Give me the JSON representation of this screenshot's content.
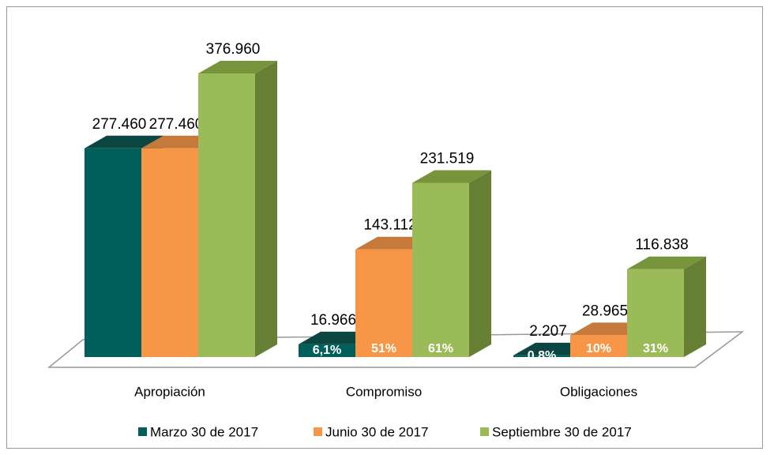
{
  "chart_data": {
    "type": "bar3d",
    "categories": [
      "Apropiación",
      "Compromiso",
      "Obligaciones"
    ],
    "series": [
      {
        "name": "Marzo 30 de 2017",
        "color": "#005f5a",
        "top_color": "#0b4642",
        "side_color": "#024844",
        "values": [
          277460,
          16966,
          2207
        ],
        "value_labels": [
          "277.460",
          "16.966",
          "2.207"
        ],
        "percents": [
          null,
          6.1,
          0.8
        ],
        "percent_labels": [
          null,
          "6,1%",
          "0.8%"
        ]
      },
      {
        "name": "Junio 30 de 2017",
        "color": "#f79646",
        "top_color": "#c5793b",
        "side_color": "#b86a2c",
        "values": [
          277460,
          143112,
          28965
        ],
        "value_labels": [
          "277.460",
          "143.112",
          "28.965"
        ],
        "percents": [
          null,
          51,
          10
        ],
        "percent_labels": [
          null,
          "51%",
          "10%"
        ]
      },
      {
        "name": "Septiembre 30 de 2017",
        "color": "#9bbb59",
        "top_color": "#77933c",
        "side_color": "#667f35",
        "values": [
          376960,
          231519,
          116838
        ],
        "value_labels": [
          "376.960",
          "231.519",
          "116.838"
        ],
        "percents": [
          null,
          61,
          31
        ],
        "percent_labels": [
          null,
          "61%",
          "31%"
        ]
      }
    ]
  }
}
